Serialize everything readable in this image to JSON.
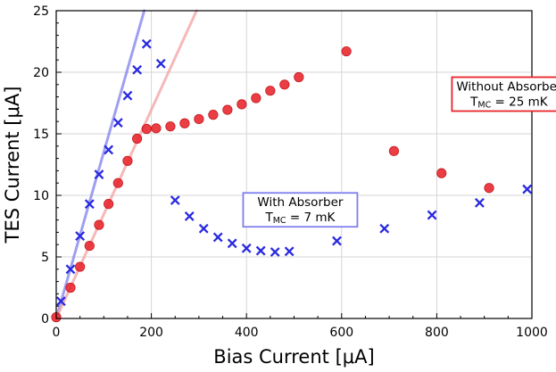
{
  "chart_data": {
    "type": "scatter",
    "xlabel": "Bias Current [μA]",
    "ylabel": "TES Current [μA]",
    "xlim": [
      0,
      1000
    ],
    "ylim": [
      0,
      25
    ],
    "xticks": [
      0,
      200,
      400,
      600,
      800,
      1000
    ],
    "yticks": [
      0,
      5,
      10,
      15,
      20,
      25
    ],
    "grid": true,
    "series": [
      {
        "marker": "circle",
        "color": "#e8232a",
        "x": [
          0,
          30,
          50,
          70,
          90,
          110,
          130,
          150,
          170,
          190,
          210,
          240,
          270,
          300,
          330,
          360,
          390,
          420,
          450,
          480,
          510,
          610,
          710,
          810,
          910
        ],
        "y": [
          0.1,
          2.5,
          4.2,
          5.9,
          7.6,
          9.3,
          11.0,
          12.8,
          14.6,
          15.4,
          15.45,
          15.6,
          15.85,
          16.2,
          16.55,
          16.95,
          17.4,
          17.9,
          18.5,
          19.0,
          19.6,
          21.7,
          13.6,
          11.8,
          10.6
        ]
      },
      {
        "marker": "x",
        "color": "#2a2ae0",
        "x": [
          10,
          30,
          50,
          70,
          90,
          110,
          130,
          150,
          170,
          190,
          220,
          250,
          280,
          310,
          340,
          370,
          400,
          430,
          460,
          490,
          590,
          690,
          790,
          890,
          990
        ],
        "y": [
          1.4,
          4.0,
          6.7,
          9.3,
          11.7,
          13.7,
          15.9,
          18.1,
          20.2,
          22.3,
          20.7,
          9.6,
          8.3,
          7.3,
          6.6,
          6.1,
          5.7,
          5.5,
          5.4,
          5.45,
          6.3,
          7.3,
          8.4,
          9.4,
          10.5
        ]
      }
    ],
    "fit_lines": [
      {
        "color": "#7f7fee",
        "x": [
          0,
          185
        ],
        "y": [
          0,
          25
        ]
      },
      {
        "color": "#f3a0a2",
        "x": [
          0,
          295
        ],
        "y": [
          0,
          25
        ]
      }
    ],
    "annotations": [
      {
        "lines": [
          "Without Absorber",
          "T_MC = 25 mK"
        ],
        "border": "#e8232a",
        "anchor": [
          952,
          19.6
        ]
      },
      {
        "lines": [
          "With Absorber",
          "T_MC = 7 mK"
        ],
        "border": "#7f7fee",
        "anchor": [
          513,
          10.2
        ]
      }
    ]
  }
}
